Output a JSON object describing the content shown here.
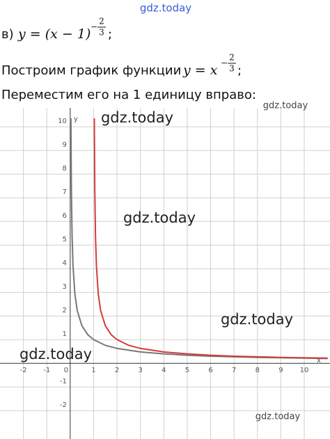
{
  "header": {
    "watermark": "gdz.today"
  },
  "line1": {
    "label": "в)",
    "formula": "y = (x − 1)",
    "exp_sign": "−",
    "exp_num": "2",
    "exp_den": "3",
    "end": ";"
  },
  "line2": {
    "text": "Построим график функции",
    "formula": "y = x",
    "exp_sign": "−",
    "exp_num": "2",
    "exp_den": "3",
    "end": ";"
  },
  "line3": {
    "text": "Переместим его на 1 единицу вправо:"
  },
  "watermarks": [
    "gdz.today",
    "gdz.today",
    "gdz.today",
    "gdz.today",
    "gdz.today",
    "gdz.today"
  ],
  "chart_data": {
    "type": "line",
    "x_label": "x",
    "y_label": "y",
    "origin_label": "0",
    "xlim": [
      -3,
      11.1
    ],
    "ylim": [
      -3.2,
      10.8
    ],
    "xticks": [
      -2,
      -1,
      1,
      2,
      3,
      4,
      5,
      6,
      7,
      8,
      9,
      10
    ],
    "yticks": [
      -2,
      -1,
      1,
      2,
      3,
      4,
      5,
      6,
      7,
      8,
      9,
      10
    ],
    "grid": true,
    "series": [
      {
        "color": "#777777",
        "x": [
          0.03,
          0.05,
          0.08,
          0.12,
          0.2,
          0.3,
          0.5,
          0.75,
          1,
          1.5,
          2,
          3,
          4,
          5,
          6,
          8,
          10,
          11
        ],
        "values": [
          10.36,
          7.37,
          5.39,
          4.11,
          2.92,
          2.23,
          1.59,
          1.21,
          1,
          0.76,
          0.63,
          0.48,
          0.4,
          0.34,
          0.3,
          0.25,
          0.22,
          0.2
        ]
      },
      {
        "color": "#d23c3c",
        "x": [
          1.03,
          1.05,
          1.08,
          1.12,
          1.2,
          1.3,
          1.5,
          1.75,
          2,
          2.5,
          3,
          4,
          5,
          6,
          7,
          9,
          11
        ],
        "values": [
          10.36,
          7.37,
          5.39,
          4.11,
          2.92,
          2.23,
          1.59,
          1.21,
          1,
          0.76,
          0.63,
          0.48,
          0.4,
          0.34,
          0.3,
          0.25,
          0.22
        ]
      }
    ]
  }
}
